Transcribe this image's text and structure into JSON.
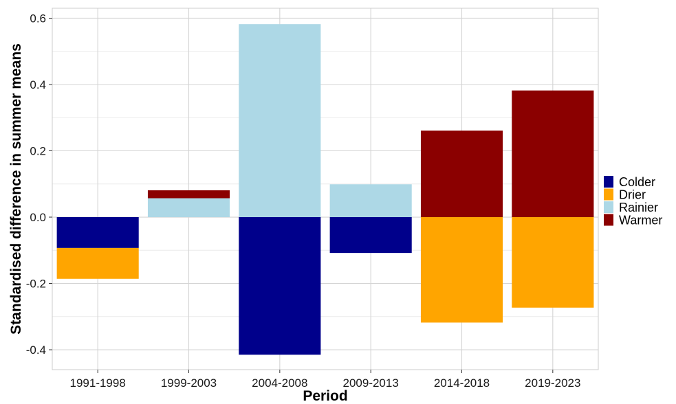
{
  "chart_data": {
    "type": "bar",
    "stacked": true,
    "categories": [
      "1991-1998",
      "1999-2003",
      "2004-2008",
      "2009-2013",
      "2014-2018",
      "2019-2023"
    ],
    "series": [
      {
        "name": "Colder",
        "color": "#00008b",
        "values": [
          -0.093,
          0,
          -0.415,
          -0.108,
          0,
          0
        ]
      },
      {
        "name": "Drier",
        "color": "#ffa500",
        "values": [
          -0.093,
          0,
          0,
          0,
          -0.318,
          -0.273
        ]
      },
      {
        "name": "Rainier",
        "color": "#add8e6",
        "values": [
          0,
          0.057,
          0.582,
          0.099,
          0,
          0
        ]
      },
      {
        "name": "Warmer",
        "color": "#8b0000",
        "values": [
          0,
          0.024,
          0,
          0,
          0.261,
          0.382
        ]
      }
    ],
    "xlabel": "Period",
    "ylabel": "Standardised difference in summer means",
    "ylim": [
      -0.46,
      0.63
    ],
    "yticks": [
      -0.4,
      -0.2,
      0.0,
      0.2,
      0.4,
      0.6
    ],
    "ytick_labels": [
      "-0.4",
      "-0.2",
      "0.0",
      "0.2",
      "0.4",
      "0.6"
    ],
    "grid": true,
    "legend_position": "right"
  }
}
